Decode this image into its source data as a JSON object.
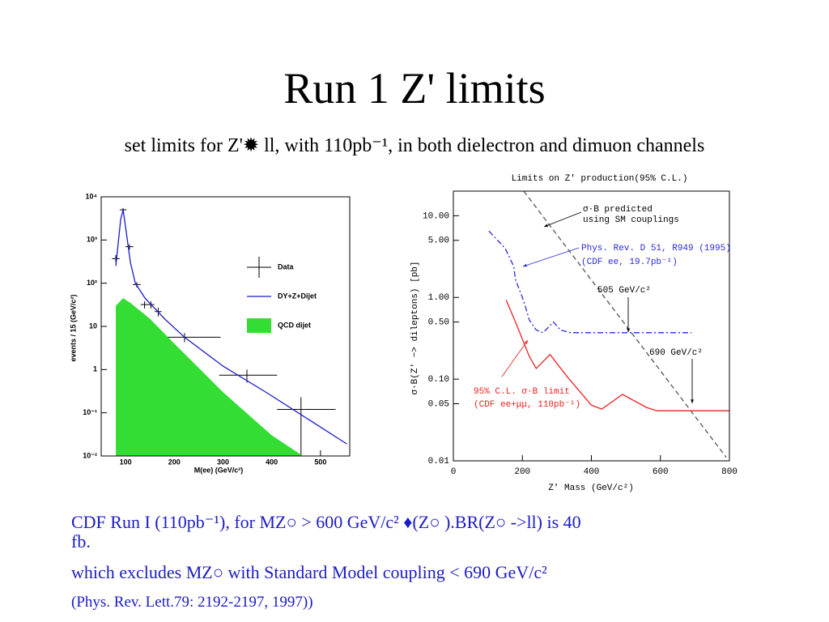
{
  "slide": {
    "title": "Run 1 Z' limits",
    "subtitle": "set limits for Z'✹ ll, with 110pb⁻¹, in both dielectron and dimuon channels",
    "lines": [
      "CDF Run I (110pb⁻¹),  for MZ○ > 600 GeV/c² ♦(Z○ ).BR(Z○ ->ll) is 40",
      "fb.",
      " which excludes MZ○  with Standard Model coupling < 690 GeV/c²",
      "(Phys. Rev. Lett.79: 2192-2197, 1997))"
    ]
  },
  "chart_data": [
    {
      "type": "line",
      "log_y": true,
      "legend": "right",
      "xlabel": "M(ee) (GeV/c²)",
      "ylabel": "events / 15 (GeV/c²)",
      "xlim": [
        50,
        560
      ],
      "ylim": [
        0.01,
        10000
      ],
      "xticks": [
        100,
        200,
        300,
        400,
        500
      ],
      "yticks": [
        {
          "value": 0.01,
          "label": "10⁻²"
        },
        {
          "value": 0.1,
          "label": "10⁻¹"
        },
        1,
        10,
        {
          "value": 100,
          "label": "10²"
        },
        {
          "value": 1000,
          "label": "10³"
        },
        {
          "value": 10000,
          "label": "10⁴"
        }
      ],
      "series": [
        {
          "name": "Data",
          "type": "errorbar",
          "color": "#000000",
          "x": [
            80,
            95,
            108,
            123,
            139,
            152,
            167,
            221,
            349,
            460
          ],
          "values": [
            370,
            5000,
            700,
            93,
            32,
            32,
            22,
            5.6,
            0.74,
            0.12
          ],
          "x_low": [
            72,
            88,
            100,
            115,
            131,
            145,
            160,
            172,
            292,
            411
          ],
          "x_high": [
            88,
            102,
            116,
            131,
            147,
            159,
            174,
            295,
            411,
            531
          ],
          "y_low": [
            300,
            4500,
            600,
            80,
            26,
            26,
            17,
            4.3,
            0.5,
            0.01
          ],
          "y_high": [
            450,
            5500,
            800,
            106,
            38,
            38,
            27,
            7,
            1,
            0.23
          ]
        },
        {
          "name": "DY+Z+Dijet",
          "type": "line",
          "color": "#1a1acc",
          "x": [
            80,
            90,
            95,
            100,
            110,
            120,
            140,
            180,
            221,
            300,
            390,
            554
          ],
          "values": [
            250,
            3000,
            5000,
            2000,
            300,
            100,
            45,
            15,
            5.6,
            1.2,
            0.29,
            0.019
          ]
        },
        {
          "name": "QCD dijet",
          "type": "area",
          "color": "#33dd33",
          "x": [
            80,
            95,
            110,
            150,
            200,
            250,
            300,
            400,
            464
          ],
          "values": [
            30,
            45,
            35,
            15,
            4,
            1.1,
            0.3,
            0.03,
            0.01
          ]
        }
      ]
    },
    {
      "type": "line",
      "log_y": true,
      "title": "Limits on Z' production(95% C.L.)",
      "xlabel": "Z' Mass    (GeV/c²)",
      "ylabel": "σ·B(Z' −> dileptons)    [pb]",
      "xlim": [
        0,
        800
      ],
      "ylim": [
        0.01,
        20
      ],
      "xticks": [
        0,
        200,
        400,
        600,
        800
      ],
      "yticks": [
        {
          "value": 0.01,
          "label": "0.01"
        },
        {
          "value": 0.05,
          "label": "0.05"
        },
        {
          "value": 0.1,
          "label": "0.10"
        },
        {
          "value": 0.5,
          "label": "0.50"
        },
        {
          "value": 1,
          "label": "1.00"
        },
        {
          "value": 5,
          "label": "5.00"
        },
        {
          "value": 10,
          "label": "10.00"
        }
      ],
      "annotations": [
        "σ·B predicted",
        "using SM couplings",
        "Phys. Rev. D 51, R949 (1995)",
        "(CDF ee, 19.7pb⁻¹)",
        "505 GeV/c²",
        "690 GeV/c²",
        "95% C.L. σ·B limit",
        "(CDF ee+μμ, 110pb⁻¹)"
      ],
      "series": [
        {
          "type": "line",
          "color": "#555555",
          "dash": "dashed",
          "x": [
            204,
            791
          ],
          "values": [
            20,
            0.011
          ]
        },
        {
          "type": "line",
          "color": "#2a2ae0",
          "dash": "dashdot",
          "x": [
            103,
            150,
            175,
            180,
            200,
            210,
            220,
            240,
            260,
            290,
            310,
            340,
            690
          ],
          "values": [
            6.5,
            4.0,
            2.4,
            1.65,
            1.0,
            0.74,
            0.53,
            0.4,
            0.37,
            0.5,
            0.4,
            0.37,
            0.37
          ]
        },
        {
          "type": "line",
          "color": "#ee2222",
          "dash": "solid",
          "x": [
            153,
            180,
            220,
            240,
            280,
            330,
            400,
            430,
            490,
            560,
            590,
            800
          ],
          "values": [
            0.93,
            0.5,
            0.19,
            0.135,
            0.2,
            0.107,
            0.048,
            0.043,
            0.065,
            0.045,
            0.041,
            0.041
          ]
        }
      ]
    }
  ]
}
